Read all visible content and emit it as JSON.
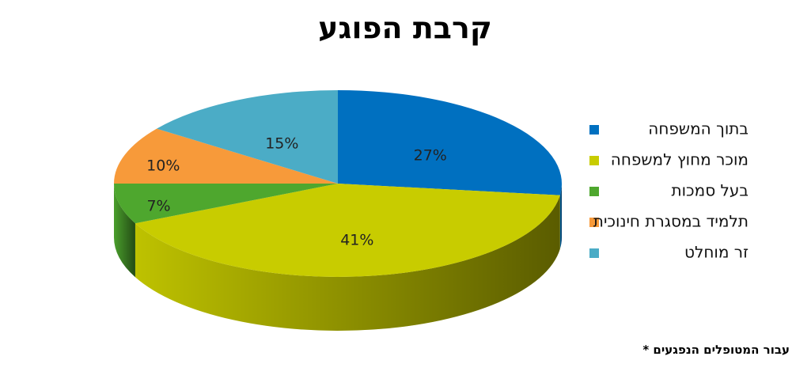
{
  "chart_data": {
    "type": "pie3d",
    "title": "קרבת הפוגע",
    "categories": [
      "בתוך המשפחה",
      "מוכר מחוץ למשפחה",
      "בעל סמכות",
      "תלמיד במסגרת חינוכית",
      "זר מוחלט"
    ],
    "values": [
      27,
      41,
      7,
      10,
      15
    ],
    "value_labels": [
      "27%",
      "41%",
      "7%",
      "10%",
      "15%"
    ],
    "colors": [
      "#0070c0",
      "#c8cc00",
      "#4ea72e",
      "#f79a3a",
      "#4bacc6"
    ],
    "legend": "right",
    "note": "עבור המטופלים הנפגעים *"
  }
}
